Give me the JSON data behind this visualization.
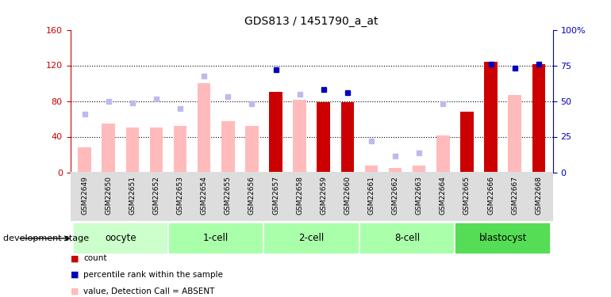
{
  "title": "GDS813 / 1451790_a_at",
  "samples": [
    "GSM22649",
    "GSM22650",
    "GSM22651",
    "GSM22652",
    "GSM22653",
    "GSM22654",
    "GSM22655",
    "GSM22656",
    "GSM22657",
    "GSM22658",
    "GSM22659",
    "GSM22660",
    "GSM22661",
    "GSM22662",
    "GSM22663",
    "GSM22664",
    "GSM22665",
    "GSM22666",
    "GSM22667",
    "GSM22668"
  ],
  "groups": [
    {
      "name": "oocyte",
      "indices": [
        0,
        1,
        2,
        3
      ],
      "color": "#ccffcc"
    },
    {
      "name": "1-cell",
      "indices": [
        4,
        5,
        6,
        7
      ],
      "color": "#aaffaa"
    },
    {
      "name": "2-cell",
      "indices": [
        8,
        9,
        10,
        11
      ],
      "color": "#aaffaa"
    },
    {
      "name": "8-cell",
      "indices": [
        12,
        13,
        14,
        15
      ],
      "color": "#aaffaa"
    },
    {
      "name": "blastocyst",
      "indices": [
        16,
        17,
        18,
        19
      ],
      "color": "#55dd55"
    }
  ],
  "count_values": [
    null,
    null,
    null,
    null,
    null,
    null,
    null,
    null,
    90,
    null,
    79,
    79,
    null,
    null,
    null,
    null,
    68,
    124,
    null,
    121
  ],
  "value_absent": [
    28,
    55,
    50,
    50,
    52,
    100,
    57,
    52,
    null,
    81,
    null,
    null,
    8,
    5,
    8,
    41,
    null,
    null,
    87,
    null
  ],
  "rank_absent_left": [
    65,
    80,
    78,
    82,
    72,
    108,
    85,
    77,
    null,
    88,
    null,
    null,
    35,
    18,
    22,
    77,
    null,
    null,
    null,
    null
  ],
  "percentile_present": [
    null,
    null,
    null,
    null,
    null,
    null,
    null,
    null,
    72,
    null,
    58,
    56,
    null,
    null,
    null,
    null,
    null,
    76,
    73,
    76
  ],
  "ylim_left": [
    0,
    160
  ],
  "ylim_right": [
    0,
    100
  ],
  "yticks_left": [
    0,
    40,
    80,
    120,
    160
  ],
  "yticks_right": [
    0,
    25,
    50,
    75,
    100
  ],
  "color_count": "#cc0000",
  "color_percentile": "#0000bb",
  "color_value_absent": "#ffbbbb",
  "color_rank_absent": "#bbbbee",
  "bg_color": "#ffffff",
  "dev_stage_label": "development stage"
}
